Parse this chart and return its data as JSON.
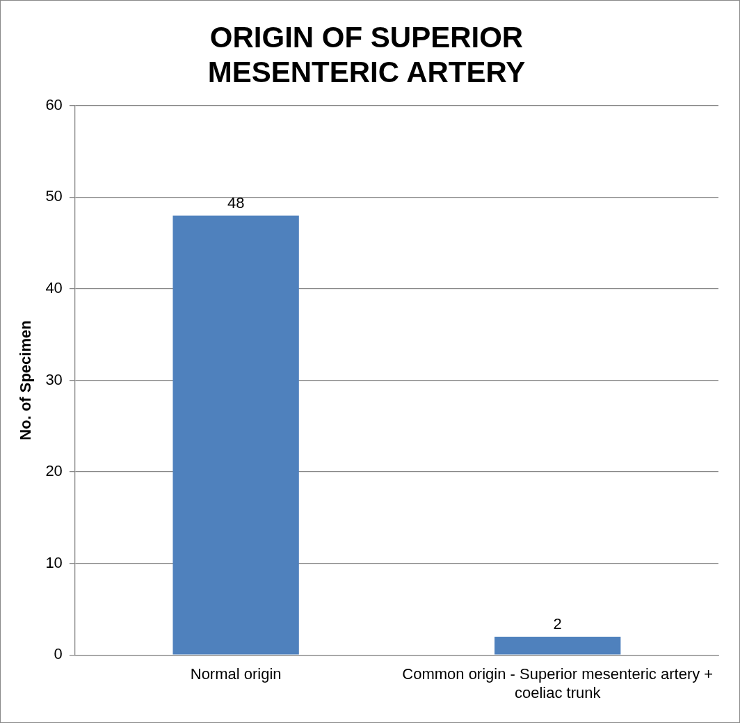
{
  "chart_data": {
    "type": "bar",
    "title": "ORIGIN OF SUPERIOR MESENTERIC ARTERY",
    "ylabel": "No. of Specimen",
    "categories": [
      "Normal origin",
      "Common origin - Superior mesenteric artery + coeliac trunk"
    ],
    "values": [
      48,
      2
    ],
    "color": "#4f81bd",
    "ylim": [
      0,
      60
    ],
    "yticks": [
      0,
      10,
      20,
      30,
      40,
      50,
      60
    ],
    "grid": "y",
    "data_labels": true
  }
}
